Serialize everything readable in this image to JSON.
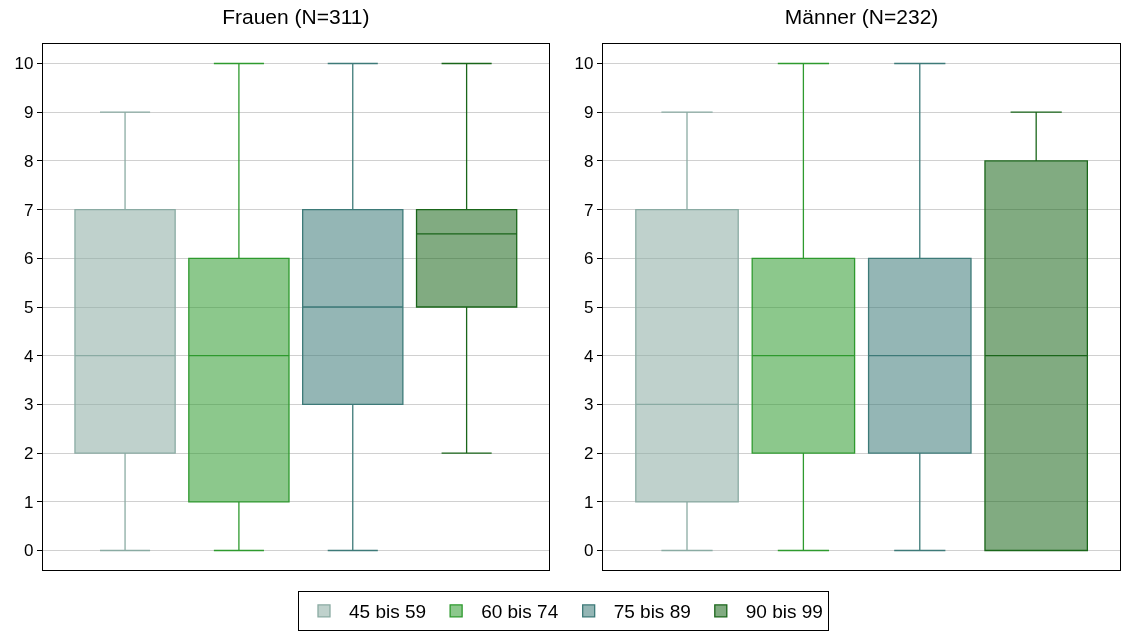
{
  "chart_data": [
    {
      "type": "box",
      "title": "Frauen (N=311)",
      "categories": [
        null
      ],
      "ylim": [
        -0.4,
        10.4
      ],
      "yticks": [
        0,
        1,
        2,
        3,
        4,
        5,
        6,
        7,
        8,
        9,
        10
      ],
      "grid": "y",
      "legend": "bottom",
      "series": [
        {
          "name": "45 bis 59",
          "color": "#8aaba3",
          "boxes": [
            {
              "low": 0,
              "q1": 2,
              "median": 4,
              "q3": 7,
              "high": 9
            }
          ]
        },
        {
          "name": "60 bis 74",
          "color": "#2e9a2e",
          "boxes": [
            {
              "low": 0,
              "q1": 1,
              "median": 4,
              "q3": 6,
              "high": 10
            }
          ]
        },
        {
          "name": "75 bis 89",
          "color": "#3d7a78",
          "boxes": [
            {
              "low": 0,
              "q1": 3,
              "median": 5,
              "q3": 7,
              "high": 10
            }
          ]
        },
        {
          "name": "90 bis 99",
          "color": "#1a661a",
          "boxes": [
            {
              "low": 2,
              "q1": 5,
              "median": 6.5,
              "q3": 7,
              "high": 10
            }
          ]
        }
      ]
    },
    {
      "type": "box",
      "title": "Männer (N=232)",
      "categories": [
        null
      ],
      "ylim": [
        -0.4,
        10.4
      ],
      "yticks": [
        0,
        1,
        2,
        3,
        4,
        5,
        6,
        7,
        8,
        9,
        10
      ],
      "grid": "y",
      "series": [
        {
          "color": "#8aaba3",
          "boxes": [
            {
              "low": 0,
              "q1": 1,
              "median": 3,
              "q3": 7,
              "high": 9
            }
          ]
        },
        {
          "color": "#2e9a2e",
          "boxes": [
            {
              "low": 0,
              "q1": 2,
              "median": 4,
              "q3": 6,
              "high": 10
            }
          ]
        },
        {
          "color": "#3d7a78",
          "boxes": [
            {
              "low": 0,
              "q1": 2,
              "median": 4,
              "q3": 6,
              "high": 10
            }
          ]
        },
        {
          "color": "#1a661a",
          "boxes": [
            {
              "low": 0,
              "q1": 0,
              "median": 4,
              "q3": 8,
              "high": 9
            }
          ]
        }
      ]
    }
  ]
}
